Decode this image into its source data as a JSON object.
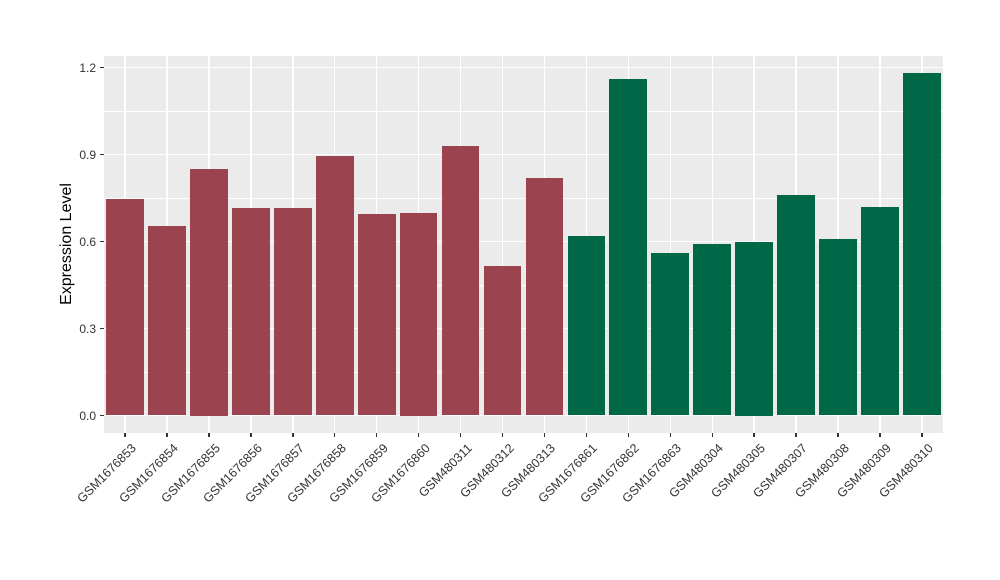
{
  "chart_data": {
    "type": "bar",
    "title": "",
    "xlabel": "",
    "ylabel": "Expression Level",
    "categories": [
      "GSM1676853",
      "GSM1676854",
      "GSM1676855",
      "GSM1676856",
      "GSM1676857",
      "GSM1676858",
      "GSM1676859",
      "GSM1676860",
      "GSM480311",
      "GSM480312",
      "GSM480313",
      "GSM1676861",
      "GSM1676862",
      "GSM1676863",
      "GSM480304",
      "GSM480305",
      "GSM480307",
      "GSM480308",
      "GSM480309",
      "GSM480310"
    ],
    "values": [
      0.745,
      0.655,
      0.85,
      0.715,
      0.715,
      0.895,
      0.695,
      0.7,
      0.93,
      0.515,
      0.82,
      0.62,
      1.16,
      0.56,
      0.59,
      0.6,
      0.76,
      0.61,
      0.72,
      1.18
    ],
    "groups": [
      "group1",
      "group1",
      "group1",
      "group1",
      "group1",
      "group1",
      "group1",
      "group1",
      "group1",
      "group1",
      "group1",
      "group2",
      "group2",
      "group2",
      "group2",
      "group2",
      "group2",
      "group2",
      "group2",
      "group2"
    ],
    "group_colors": {
      "group1": "#9C4350",
      "group2": "#006747"
    },
    "ylim": [
      0,
      1.24
    ],
    "yticks": [
      0.0,
      0.3,
      0.6,
      0.9,
      1.2
    ],
    "ytick_labels": [
      "0.0",
      "0.3",
      "0.6",
      "0.9",
      "1.2"
    ],
    "yticks_minor": [
      0.15,
      0.45,
      0.75,
      1.05
    ],
    "x_label_rotation": -45,
    "grid": true,
    "legend": false,
    "panel_bg": "#EBEBEB",
    "grid_color": "#FFFFFF",
    "tick_label_color": "#333333",
    "axis_title_color": "#000000"
  }
}
